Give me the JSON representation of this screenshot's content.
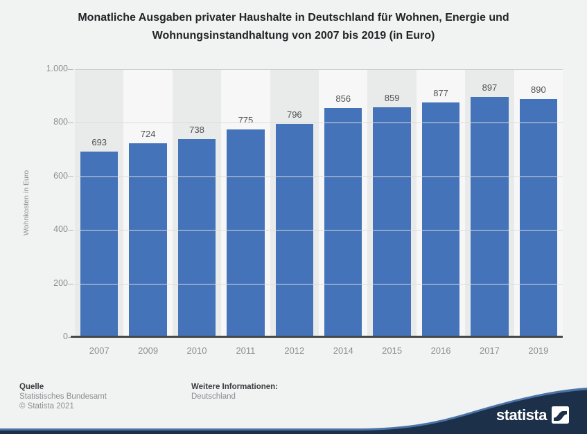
{
  "title": "Monatliche Ausgaben privater Haushalte in Deutschland für Wohnen, Energie und Wohnungsinstandhaltung von 2007 bis 2019 (in Euro)",
  "chart_data": {
    "type": "bar",
    "categories": [
      "2007",
      "2009",
      "2010",
      "2011",
      "2012",
      "2014",
      "2015",
      "2016",
      "2017",
      "2019"
    ],
    "values": [
      693,
      724,
      738,
      775,
      796,
      856,
      859,
      877,
      897,
      890
    ],
    "title": "Monatliche Ausgaben privater Haushalte in Deutschland für Wohnen, Energie und Wohnungsinstandhaltung von 2007 bis 2019 (in Euro)",
    "xlabel": "",
    "ylabel": "Wohnkosten in Euro",
    "ylim": [
      0,
      1000
    ],
    "ytick_labels": [
      "1.000",
      "800",
      "600",
      "400",
      "200",
      "0"
    ],
    "ytick_values": [
      1000,
      800,
      600,
      400,
      200,
      0
    ],
    "grid": true,
    "legend": false,
    "bar_color": "#4473b9",
    "column_stripe_dark": "#e9eaea",
    "column_stripe_light": "#f7f7f7"
  },
  "footer": {
    "source_label": "Quelle",
    "source_name": "Statistisches Bundesamt",
    "copyright": "© Statista 2021",
    "info_label": "Weitere Informationen:",
    "info_value": "Deutschland",
    "brand": "statista"
  },
  "colors": {
    "background": "#f1f2f2",
    "wave_navy": "#1d3049",
    "wave_blue": "#4a74a8",
    "title_text": "#222426",
    "axis_text": "#8c8e90",
    "value_text": "#4f5254"
  }
}
